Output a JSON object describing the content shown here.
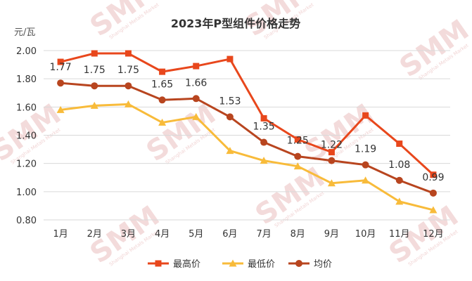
{
  "chart_data": {
    "type": "line",
    "title": "2023年P型组件价格走势",
    "ylabel": "元/瓦",
    "xlabel": "",
    "categories": [
      "1月",
      "2月",
      "3月",
      "4月",
      "5月",
      "6月",
      "7月",
      "8月",
      "9月",
      "10月",
      "11月",
      "12月"
    ],
    "ylim": [
      0.8,
      2.0
    ],
    "yticks": [
      "2.00",
      "1.80",
      "1.60",
      "1.40",
      "1.20",
      "1.00",
      "0.80"
    ],
    "grid": true,
    "legend_position": "bottom",
    "series": [
      {
        "name": "最高价",
        "color": "#e8471c",
        "marker": "square",
        "values": [
          1.92,
          1.98,
          1.98,
          1.85,
          1.89,
          1.94,
          1.52,
          1.37,
          1.28,
          1.54,
          1.34,
          1.12
        ]
      },
      {
        "name": "最低价",
        "color": "#f8bb3a",
        "marker": "triangle",
        "values": [
          1.58,
          1.61,
          1.62,
          1.49,
          1.53,
          1.29,
          1.22,
          1.18,
          1.06,
          1.08,
          0.93,
          0.87
        ]
      },
      {
        "name": "均价",
        "color": "#b8451f",
        "marker": "circle",
        "values": [
          1.77,
          1.75,
          1.75,
          1.65,
          1.66,
          1.53,
          1.35,
          1.25,
          1.22,
          1.19,
          1.08,
          0.99
        ],
        "labels": [
          "1.77",
          "1.75",
          "1.75",
          "1.65",
          "1.66",
          "1.53",
          "1.35",
          "1.25",
          "1.22",
          "1.19",
          "1.08",
          "0.99"
        ]
      }
    ]
  },
  "watermark": {
    "text": "SMM",
    "subtext": "Shanghai Metals Market"
  }
}
